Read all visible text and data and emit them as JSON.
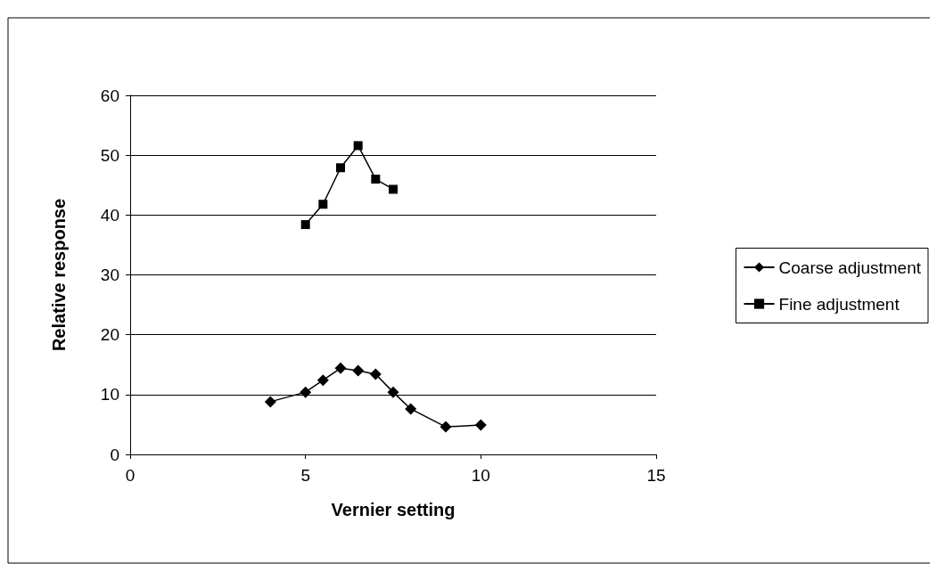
{
  "chart_data": {
    "type": "line",
    "xlabel": "Vernier setting",
    "ylabel": "Relative response",
    "xlim": [
      0,
      15
    ],
    "xticks": [
      0,
      5,
      10,
      15
    ],
    "ylim": [
      0,
      60
    ],
    "yticks": [
      0,
      10,
      20,
      30,
      40,
      50,
      60
    ],
    "grid": "y",
    "legend": "right",
    "series": [
      {
        "name": "Coarse adjustment",
        "color": "#000000",
        "marker": "diamond",
        "x": [
          4,
          5,
          5.5,
          6,
          6.5,
          7,
          7.5,
          8,
          9,
          10
        ],
        "values": [
          8.8,
          10.4,
          12.4,
          14.4,
          14.0,
          13.4,
          10.4,
          7.6,
          4.6,
          4.9
        ]
      },
      {
        "name": "Fine adjustment",
        "color": "#000000",
        "marker": "square",
        "x": [
          5,
          5.5,
          6,
          6.5,
          7,
          7.5
        ],
        "values": [
          38.4,
          41.8,
          47.9,
          51.6,
          46.0,
          44.3
        ]
      }
    ]
  }
}
